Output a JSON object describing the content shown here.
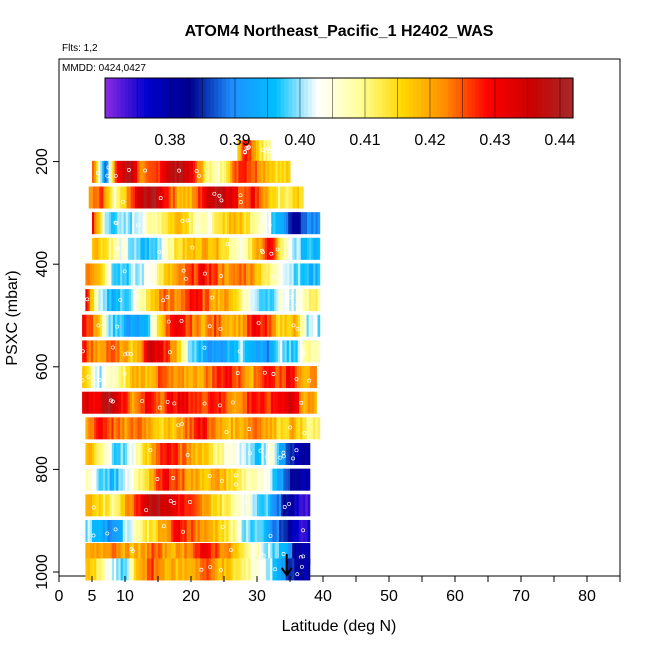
{
  "chart_data": {
    "type": "heatmap",
    "title": "ATOM4 Northeast_Pacific_1 H2402_WAS",
    "flights_label": "Flts: 1,2",
    "date_label": "MMDD: 0424,0427",
    "xlabel": "Latitude (deg N)",
    "ylabel": "PSXC (mbar)",
    "xlim": [
      0,
      85
    ],
    "ylim": [
      1000,
      0
    ],
    "x_ticks": [
      0,
      5,
      10,
      20,
      30,
      40,
      50,
      60,
      70,
      80
    ],
    "y_ticks": [
      200,
      400,
      600,
      800,
      1000
    ],
    "colorbar": {
      "min": 0.37,
      "max": 0.442,
      "ticks": [
        0.38,
        0.39,
        0.4,
        0.41,
        0.42,
        0.43,
        0.44
      ],
      "tick_labels": [
        "0.38",
        "0.39",
        "0.40",
        "0.41",
        "0.42",
        "0.43",
        "0.44"
      ],
      "colors": [
        "#8b2be2",
        "#0000cd",
        "#00008b",
        "#1e90ff",
        "#00bfff",
        "#ffffff",
        "#ffff99",
        "#ffd700",
        "#ff8c00",
        "#ff0000",
        "#cd0000",
        "#a52a2a"
      ]
    },
    "marker_latitude": 34.5,
    "bands": [
      {
        "p": 180,
        "lat_start": 27,
        "lat_end": 32,
        "values": [
          0.415,
          0.43,
          0.425,
          0.418,
          0.41
        ]
      },
      {
        "p": 220,
        "lat_start": 5,
        "lat_end": 35,
        "values": [
          0.425,
          0.39,
          0.43,
          0.44,
          0.42,
          0.425,
          0.435,
          0.44,
          0.43,
          0.415,
          0.405,
          0.418,
          0.43,
          0.425,
          0.42,
          0.415
        ]
      },
      {
        "p": 270,
        "lat_start": 4.5,
        "lat_end": 37,
        "values": [
          0.42,
          0.425,
          0.405,
          0.42,
          0.435,
          0.44,
          0.43,
          0.42,
          0.418,
          0.43,
          0.44,
          0.435,
          0.425,
          0.43,
          0.42,
          0.41,
          0.415
        ]
      },
      {
        "p": 320,
        "lat_start": 5,
        "lat_end": 39.5,
        "values": [
          0.43,
          0.4,
          0.398,
          0.4,
          0.405,
          0.41,
          0.415,
          0.42,
          0.41,
          0.405,
          0.412,
          0.42,
          0.415,
          0.41,
          0.4,
          0.395,
          0.38,
          0.39
        ]
      },
      {
        "p": 370,
        "lat_start": 5,
        "lat_end": 39.5,
        "values": [
          0.42,
          0.415,
          0.405,
          0.4,
          0.395,
          0.398,
          0.41,
          0.415,
          0.418,
          0.42,
          0.418,
          0.41,
          0.405,
          0.42,
          0.43,
          0.41,
          0.4,
          0.395
        ]
      },
      {
        "p": 420,
        "lat_start": 4,
        "lat_end": 39.5,
        "values": [
          0.425,
          0.42,
          0.4,
          0.398,
          0.4,
          0.405,
          0.415,
          0.42,
          0.425,
          0.43,
          0.425,
          0.42,
          0.425,
          0.42,
          0.41,
          0.405,
          0.4,
          0.395
        ]
      },
      {
        "p": 470,
        "lat_start": 4,
        "lat_end": 39.5,
        "values": [
          0.43,
          0.4,
          0.395,
          0.398,
          0.405,
          0.415,
          0.425,
          0.42,
          0.43,
          0.425,
          0.42,
          0.42,
          0.41,
          0.4,
          0.398,
          0.405,
          0.4,
          0.41
        ]
      },
      {
        "p": 520,
        "lat_start": 3.5,
        "lat_end": 39.5,
        "values": [
          0.43,
          0.42,
          0.4,
          0.395,
          0.39,
          0.398,
          0.42,
          0.43,
          0.425,
          0.42,
          0.425,
          0.42,
          0.42,
          0.43,
          0.425,
          0.415,
          0.42,
          0.4
        ]
      },
      {
        "p": 570,
        "lat_start": 3.5,
        "lat_end": 39.5,
        "values": [
          0.43,
          0.42,
          0.425,
          0.42,
          0.415,
          0.435,
          0.43,
          0.42,
          0.4,
          0.395,
          0.39,
          0.395,
          0.4,
          0.395,
          0.39,
          0.4,
          0.395,
          0.41
        ]
      },
      {
        "p": 620,
        "lat_start": 3.5,
        "lat_end": 39,
        "values": [
          0.42,
          0.4,
          0.405,
          0.41,
          0.42,
          0.418,
          0.425,
          0.42,
          0.42,
          0.42,
          0.425,
          0.43,
          0.425,
          0.42,
          0.43,
          0.425,
          0.43,
          0.42
        ]
      },
      {
        "p": 670,
        "lat_start": 3.5,
        "lat_end": 39,
        "values": [
          0.435,
          0.43,
          0.44,
          0.43,
          0.42,
          0.43,
          0.425,
          0.43,
          0.43,
          0.425,
          0.43,
          0.425,
          0.42,
          0.43,
          0.425,
          0.43,
          0.435,
          0.42
        ]
      },
      {
        "p": 720,
        "lat_start": 4,
        "lat_end": 39.5,
        "values": [
          0.42,
          0.43,
          0.425,
          0.42,
          0.425,
          0.42,
          0.415,
          0.42,
          0.425,
          0.43,
          0.42,
          0.418,
          0.42,
          0.425,
          0.42,
          0.415,
          0.42,
          0.41
        ]
      },
      {
        "p": 770,
        "lat_start": 4,
        "lat_end": 38,
        "values": [
          0.42,
          0.41,
          0.4,
          0.398,
          0.41,
          0.42,
          0.43,
          0.425,
          0.42,
          0.418,
          0.41,
          0.405,
          0.4,
          0.398,
          0.405,
          0.39,
          0.38
        ]
      },
      {
        "p": 820,
        "lat_start": 4,
        "lat_end": 38,
        "values": [
          0.41,
          0.4,
          0.395,
          0.4,
          0.41,
          0.42,
          0.43,
          0.425,
          0.42,
          0.418,
          0.42,
          0.415,
          0.41,
          0.405,
          0.4,
          0.39,
          0.38
        ]
      },
      {
        "p": 870,
        "lat_start": 4,
        "lat_end": 38,
        "values": [
          0.42,
          0.415,
          0.41,
          0.42,
          0.43,
          0.44,
          0.435,
          0.43,
          0.425,
          0.42,
          0.415,
          0.41,
          0.405,
          0.4,
          0.395,
          0.385,
          0.375
        ]
      },
      {
        "p": 920,
        "lat_start": 4,
        "lat_end": 38,
        "values": [
          0.4,
          0.395,
          0.39,
          0.4,
          0.41,
          0.415,
          0.42,
          0.43,
          0.425,
          0.42,
          0.418,
          0.41,
          0.4,
          0.398,
          0.39,
          0.385,
          0.375
        ]
      },
      {
        "p": 965,
        "lat_start": 4,
        "lat_end": 38,
        "values": [
          0.418,
          0.42,
          0.425,
          0.42,
          0.418,
          0.425,
          0.42,
          0.42,
          0.425,
          0.43,
          0.425,
          0.42,
          0.41,
          0.405,
          0.4,
          0.395,
          0.38
        ]
      },
      {
        "p": 995,
        "lat_start": 4,
        "lat_end": 38,
        "values": [
          0.42,
          0.41,
          0.4,
          0.398,
          0.42,
          0.425,
          0.42,
          0.418,
          0.42,
          0.425,
          0.42,
          0.415,
          0.41,
          0.405,
          0.4,
          0.39,
          0.38
        ]
      }
    ]
  }
}
